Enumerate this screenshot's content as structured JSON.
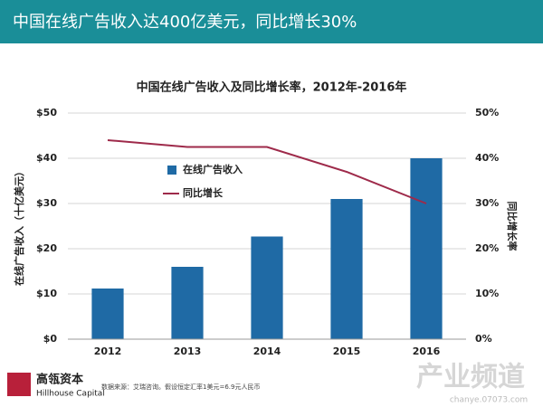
{
  "header": {
    "title": "中国在线广告收入达400亿美元，同比增长30%"
  },
  "chart_data": {
    "type": "bar",
    "title": "中国在线广告收入及同比增长率，2012年-2016年",
    "categories": [
      "2012",
      "2013",
      "2014",
      "2015",
      "2016"
    ],
    "series": [
      {
        "name": "在线广告收入",
        "type": "bar",
        "color": "#1f6aa5",
        "values": [
          11.2,
          16,
          22.7,
          31,
          40
        ]
      },
      {
        "name": "同比增长",
        "type": "line",
        "axis": "y2",
        "color": "#9e2a4a",
        "values": [
          44,
          42.5,
          42.5,
          37,
          30
        ]
      }
    ],
    "ylabel": "在线广告收入（十亿美元）",
    "y2label": "同比增长率",
    "ylim": [
      0,
      50
    ],
    "yticks": [
      {
        "value": 0,
        "label": "$0"
      },
      {
        "value": 10,
        "label": "$10"
      },
      {
        "value": 20,
        "label": "$20"
      },
      {
        "value": 30,
        "label": "$30"
      },
      {
        "value": 40,
        "label": "$40"
      },
      {
        "value": 50,
        "label": "$50"
      }
    ],
    "y2lim": [
      0,
      50
    ],
    "y2ticks": [
      {
        "value": 0,
        "label": "0%"
      },
      {
        "value": 10,
        "label": "10%"
      },
      {
        "value": 20,
        "label": "20%"
      },
      {
        "value": 30,
        "label": "30%"
      },
      {
        "value": 40,
        "label": "40%"
      },
      {
        "value": 50,
        "label": "50%"
      }
    ],
    "grid": true
  },
  "footer": {
    "logo": "高瓴资本",
    "logo_en": "Hillhouse Capital",
    "source": "数据来源：艾瑞咨询。假设恒定汇率1美元=6.9元人民币"
  },
  "watermark": {
    "title": "产业频道",
    "url": "chanye.07073.com"
  }
}
